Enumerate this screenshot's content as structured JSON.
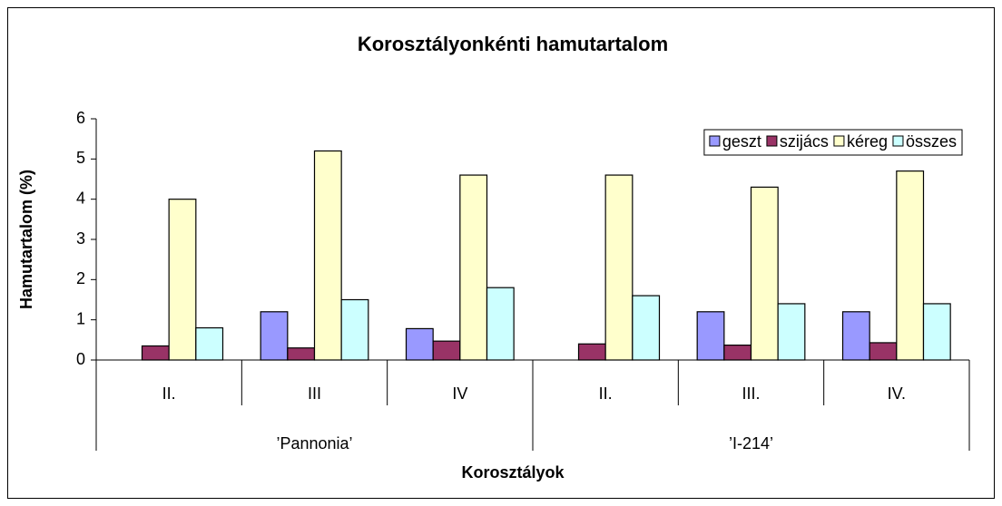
{
  "chart_data": {
    "type": "bar",
    "title": "Korosztályonkénti hamutartalom",
    "x_label": "Korosztályok",
    "y_label": "Hamutartalom (%)",
    "categories": [
      "II.",
      "III",
      "IV",
      "II.",
      "III.",
      "IV."
    ],
    "groups": [
      "’Pannonia’",
      "’I-214’"
    ],
    "series": [
      {
        "name": "geszt",
        "color": "#9999ff",
        "values": [
          0,
          1.2,
          0.78,
          0,
          1.2,
          1.2
        ]
      },
      {
        "name": "szijács",
        "color": "#993366",
        "values": [
          0.35,
          0.3,
          0.47,
          0.4,
          0.37,
          0.43
        ]
      },
      {
        "name": "kéreg",
        "color": "#ffffcc",
        "values": [
          4.0,
          5.2,
          4.6,
          4.6,
          4.3,
          4.7
        ]
      },
      {
        "name": "összes",
        "color": "#ccffff",
        "values": [
          0.8,
          1.5,
          1.8,
          1.6,
          1.4,
          1.4
        ]
      }
    ],
    "ylim": [
      0,
      6
    ],
    "yticks": [
      0,
      1,
      2,
      3,
      4,
      5,
      6
    ],
    "grid": false,
    "legend": "top-right"
  }
}
